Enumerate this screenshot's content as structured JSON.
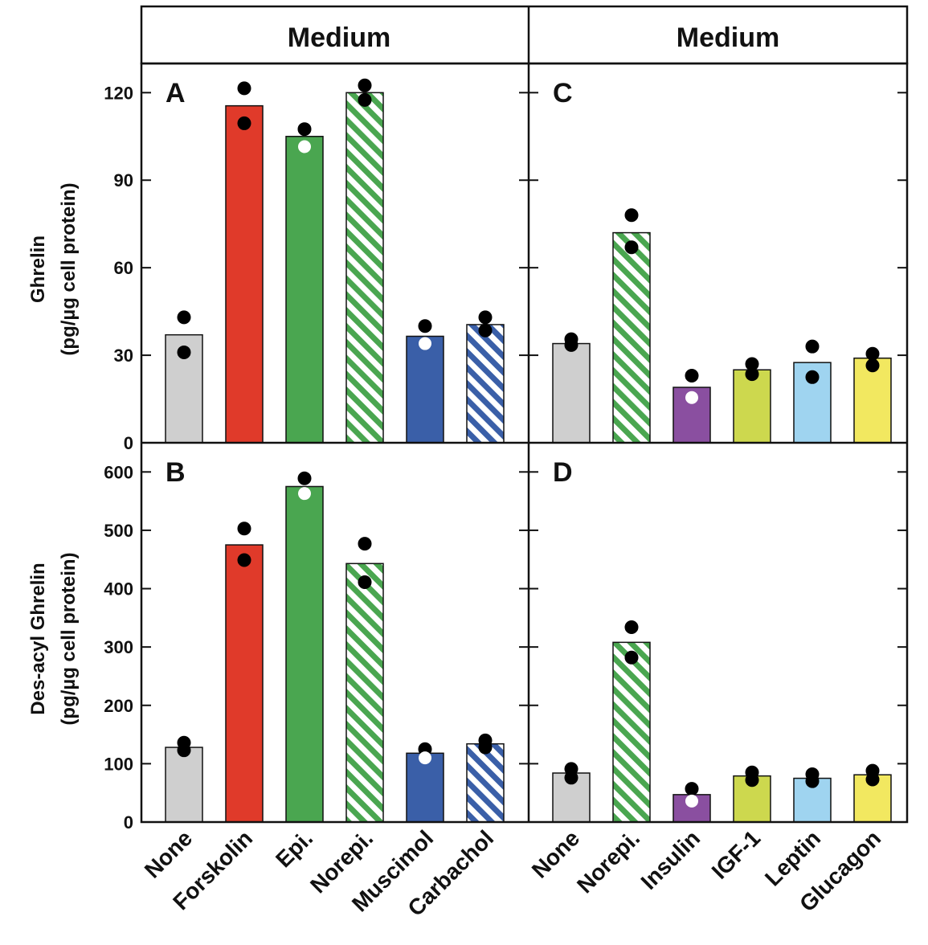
{
  "header": {
    "left_title": "Medium",
    "right_title": "Medium"
  },
  "axes": {
    "top_ylabel_line1": "Ghrelin",
    "top_ylabel_line2": "(pg/µg cell protein)",
    "bottom_ylabel_line1": "Des-acyl Ghrelin",
    "bottom_ylabel_line2": "(pg/µg cell protein)"
  },
  "left_categories": [
    "None",
    "Forskolin",
    "Epi.",
    "Norepi.",
    "Muscimol",
    "Carbachol"
  ],
  "right_categories": [
    "None",
    "Norepi.",
    "Insulin",
    "IGF-1",
    "Leptin",
    "Glucagon"
  ],
  "colors": {
    "none": "#cfcfcf",
    "forskolin": "#e03a2a",
    "epi": "#4aa650",
    "norepi_stripe": "#4aa650",
    "muscimol": "#3a5fa8",
    "carbachol_stripe": "#3a5fa8",
    "insulin": "#8a4fa0",
    "igf1": "#cdd84e",
    "leptin": "#9fd4f0",
    "glucagon": "#f2e860"
  },
  "chart_data": [
    {
      "type": "bar",
      "panel_label": "A",
      "categories": [
        "None",
        "Forskolin",
        "Epi.",
        "Norepi.",
        "Muscimol",
        "Carbachol"
      ],
      "values": [
        37,
        115.5,
        105,
        120,
        36.5,
        40.5
      ],
      "points": [
        [
          43,
          31
        ],
        [
          121.5,
          109.5
        ],
        [
          107.5,
          101.5
        ],
        [
          122.5,
          117.5
        ],
        [
          40,
          34
        ],
        [
          43,
          38.5
        ]
      ],
      "point_open": [
        [
          false,
          false
        ],
        [
          false,
          false
        ],
        [
          false,
          true
        ],
        [
          false,
          false
        ],
        [
          false,
          true
        ],
        [
          false,
          false
        ]
      ],
      "fill_keys": [
        "none",
        "forskolin",
        "epi",
        "norepi_stripe",
        "muscimol",
        "carbachol_stripe"
      ],
      "hatched": [
        false,
        false,
        false,
        true,
        false,
        true
      ],
      "ylim": [
        0,
        130
      ],
      "yticks": [
        0,
        30,
        60,
        90,
        120
      ]
    },
    {
      "type": "bar",
      "panel_label": "B",
      "categories": [
        "None",
        "Forskolin",
        "Epi.",
        "Norepi.",
        "Muscimol",
        "Carbachol"
      ],
      "values": [
        128,
        475,
        575,
        443,
        118,
        134
      ],
      "points": [
        [
          136,
          123
        ],
        [
          503,
          449
        ],
        [
          589,
          563
        ],
        [
          477,
          411
        ],
        [
          125,
          110
        ],
        [
          140,
          128
        ]
      ],
      "point_open": [
        [
          false,
          false
        ],
        [
          false,
          false
        ],
        [
          false,
          true
        ],
        [
          false,
          false
        ],
        [
          false,
          true
        ],
        [
          false,
          false
        ]
      ],
      "fill_keys": [
        "none",
        "forskolin",
        "epi",
        "norepi_stripe",
        "muscimol",
        "carbachol_stripe"
      ],
      "hatched": [
        false,
        false,
        false,
        true,
        false,
        true
      ],
      "ylim": [
        0,
        650
      ],
      "yticks": [
        0,
        100,
        200,
        300,
        400,
        500,
        600
      ]
    },
    {
      "type": "bar",
      "panel_label": "C",
      "categories": [
        "None",
        "Norepi.",
        "Insulin",
        "IGF-1",
        "Leptin",
        "Glucagon"
      ],
      "values": [
        34,
        72,
        19,
        25,
        27.5,
        29
      ],
      "points": [
        [
          35.5,
          33.5
        ],
        [
          78,
          67
        ],
        [
          23,
          15.5
        ],
        [
          27,
          23.5
        ],
        [
          33,
          22.5
        ],
        [
          30.5,
          26.5
        ]
      ],
      "point_open": [
        [
          false,
          false
        ],
        [
          false,
          false
        ],
        [
          false,
          true
        ],
        [
          false,
          false
        ],
        [
          false,
          false
        ],
        [
          false,
          false
        ]
      ],
      "fill_keys": [
        "none",
        "norepi_stripe",
        "insulin",
        "igf1",
        "leptin",
        "glucagon"
      ],
      "hatched": [
        false,
        true,
        false,
        false,
        false,
        false
      ],
      "ylim": [
        0,
        130
      ],
      "yticks": [
        0,
        30,
        60,
        90,
        120
      ]
    },
    {
      "type": "bar",
      "panel_label": "D",
      "categories": [
        "None",
        "Norepi.",
        "Insulin",
        "IGF-1",
        "Leptin",
        "Glucagon"
      ],
      "values": [
        84,
        308,
        47,
        79,
        75,
        81
      ],
      "points": [
        [
          91,
          76
        ],
        [
          334,
          282
        ],
        [
          57,
          36
        ],
        [
          85,
          72
        ],
        [
          82,
          70
        ],
        [
          88,
          73
        ]
      ],
      "point_open": [
        [
          false,
          false
        ],
        [
          false,
          false
        ],
        [
          false,
          true
        ],
        [
          false,
          false
        ],
        [
          false,
          false
        ],
        [
          false,
          false
        ]
      ],
      "fill_keys": [
        "none",
        "norepi_stripe",
        "insulin",
        "igf1",
        "leptin",
        "glucagon"
      ],
      "hatched": [
        false,
        true,
        false,
        false,
        false,
        false
      ],
      "ylim": [
        0,
        650
      ],
      "yticks": [
        0,
        100,
        200,
        300,
        400,
        500,
        600
      ]
    }
  ]
}
